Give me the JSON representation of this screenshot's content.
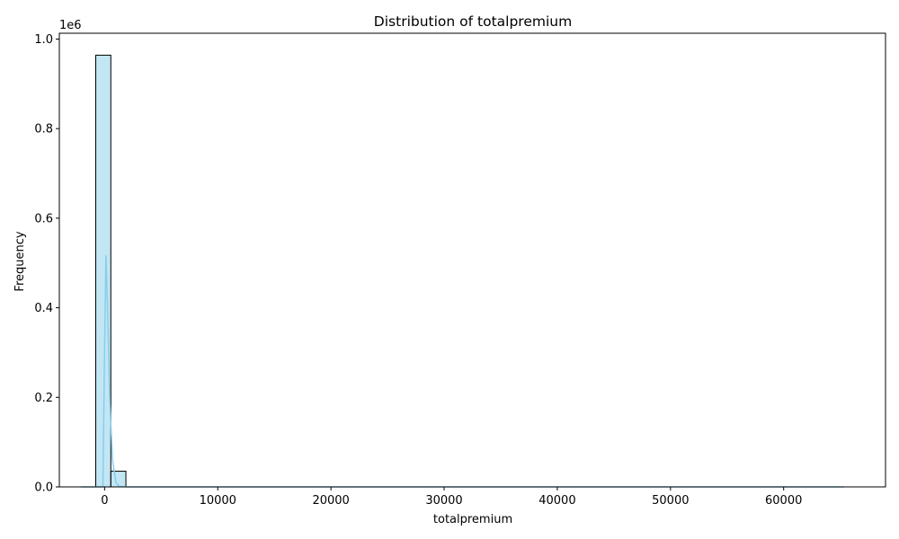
{
  "chart_data": {
    "type": "bar",
    "title": "Distribution of totalpremium",
    "xlabel": "totalpremium",
    "ylabel": "Frequency",
    "y_scale_label": "1e6",
    "xlim": [
      -4000,
      69000
    ],
    "ylim": [
      0,
      1013000
    ],
    "x_ticks": [
      0,
      10000,
      20000,
      30000,
      40000,
      50000,
      60000
    ],
    "x_tick_labels": [
      "0",
      "10000",
      "20000",
      "30000",
      "40000",
      "50000",
      "60000"
    ],
    "y_ticks": [
      0,
      200000,
      400000,
      600000,
      800000,
      1000000
    ],
    "y_tick_labels": [
      "0.0",
      "0.2",
      "0.4",
      "0.6",
      "0.8",
      "1.0"
    ],
    "grid": false,
    "series": [
      {
        "kind": "histogram",
        "bin_edges": [
          -782,
          550,
          1882
        ],
        "values": [
          964000,
          35000
        ],
        "fill_color": "#87ceeb",
        "edge_color": "#000000"
      },
      {
        "kind": "kde",
        "color": "#87ceeb",
        "x": [
          -2100,
          -800,
          -150,
          0,
          120,
          250,
          450,
          700,
          1000,
          1300,
          2000,
          4000,
          10000,
          20000,
          30000,
          40000,
          50000,
          60000,
          65300
        ],
        "y": [
          0,
          0,
          0,
          310000,
          517000,
          410000,
          195000,
          60000,
          10000,
          1000,
          0,
          0,
          0,
          0,
          0,
          0,
          0,
          0,
          0
        ]
      }
    ]
  }
}
